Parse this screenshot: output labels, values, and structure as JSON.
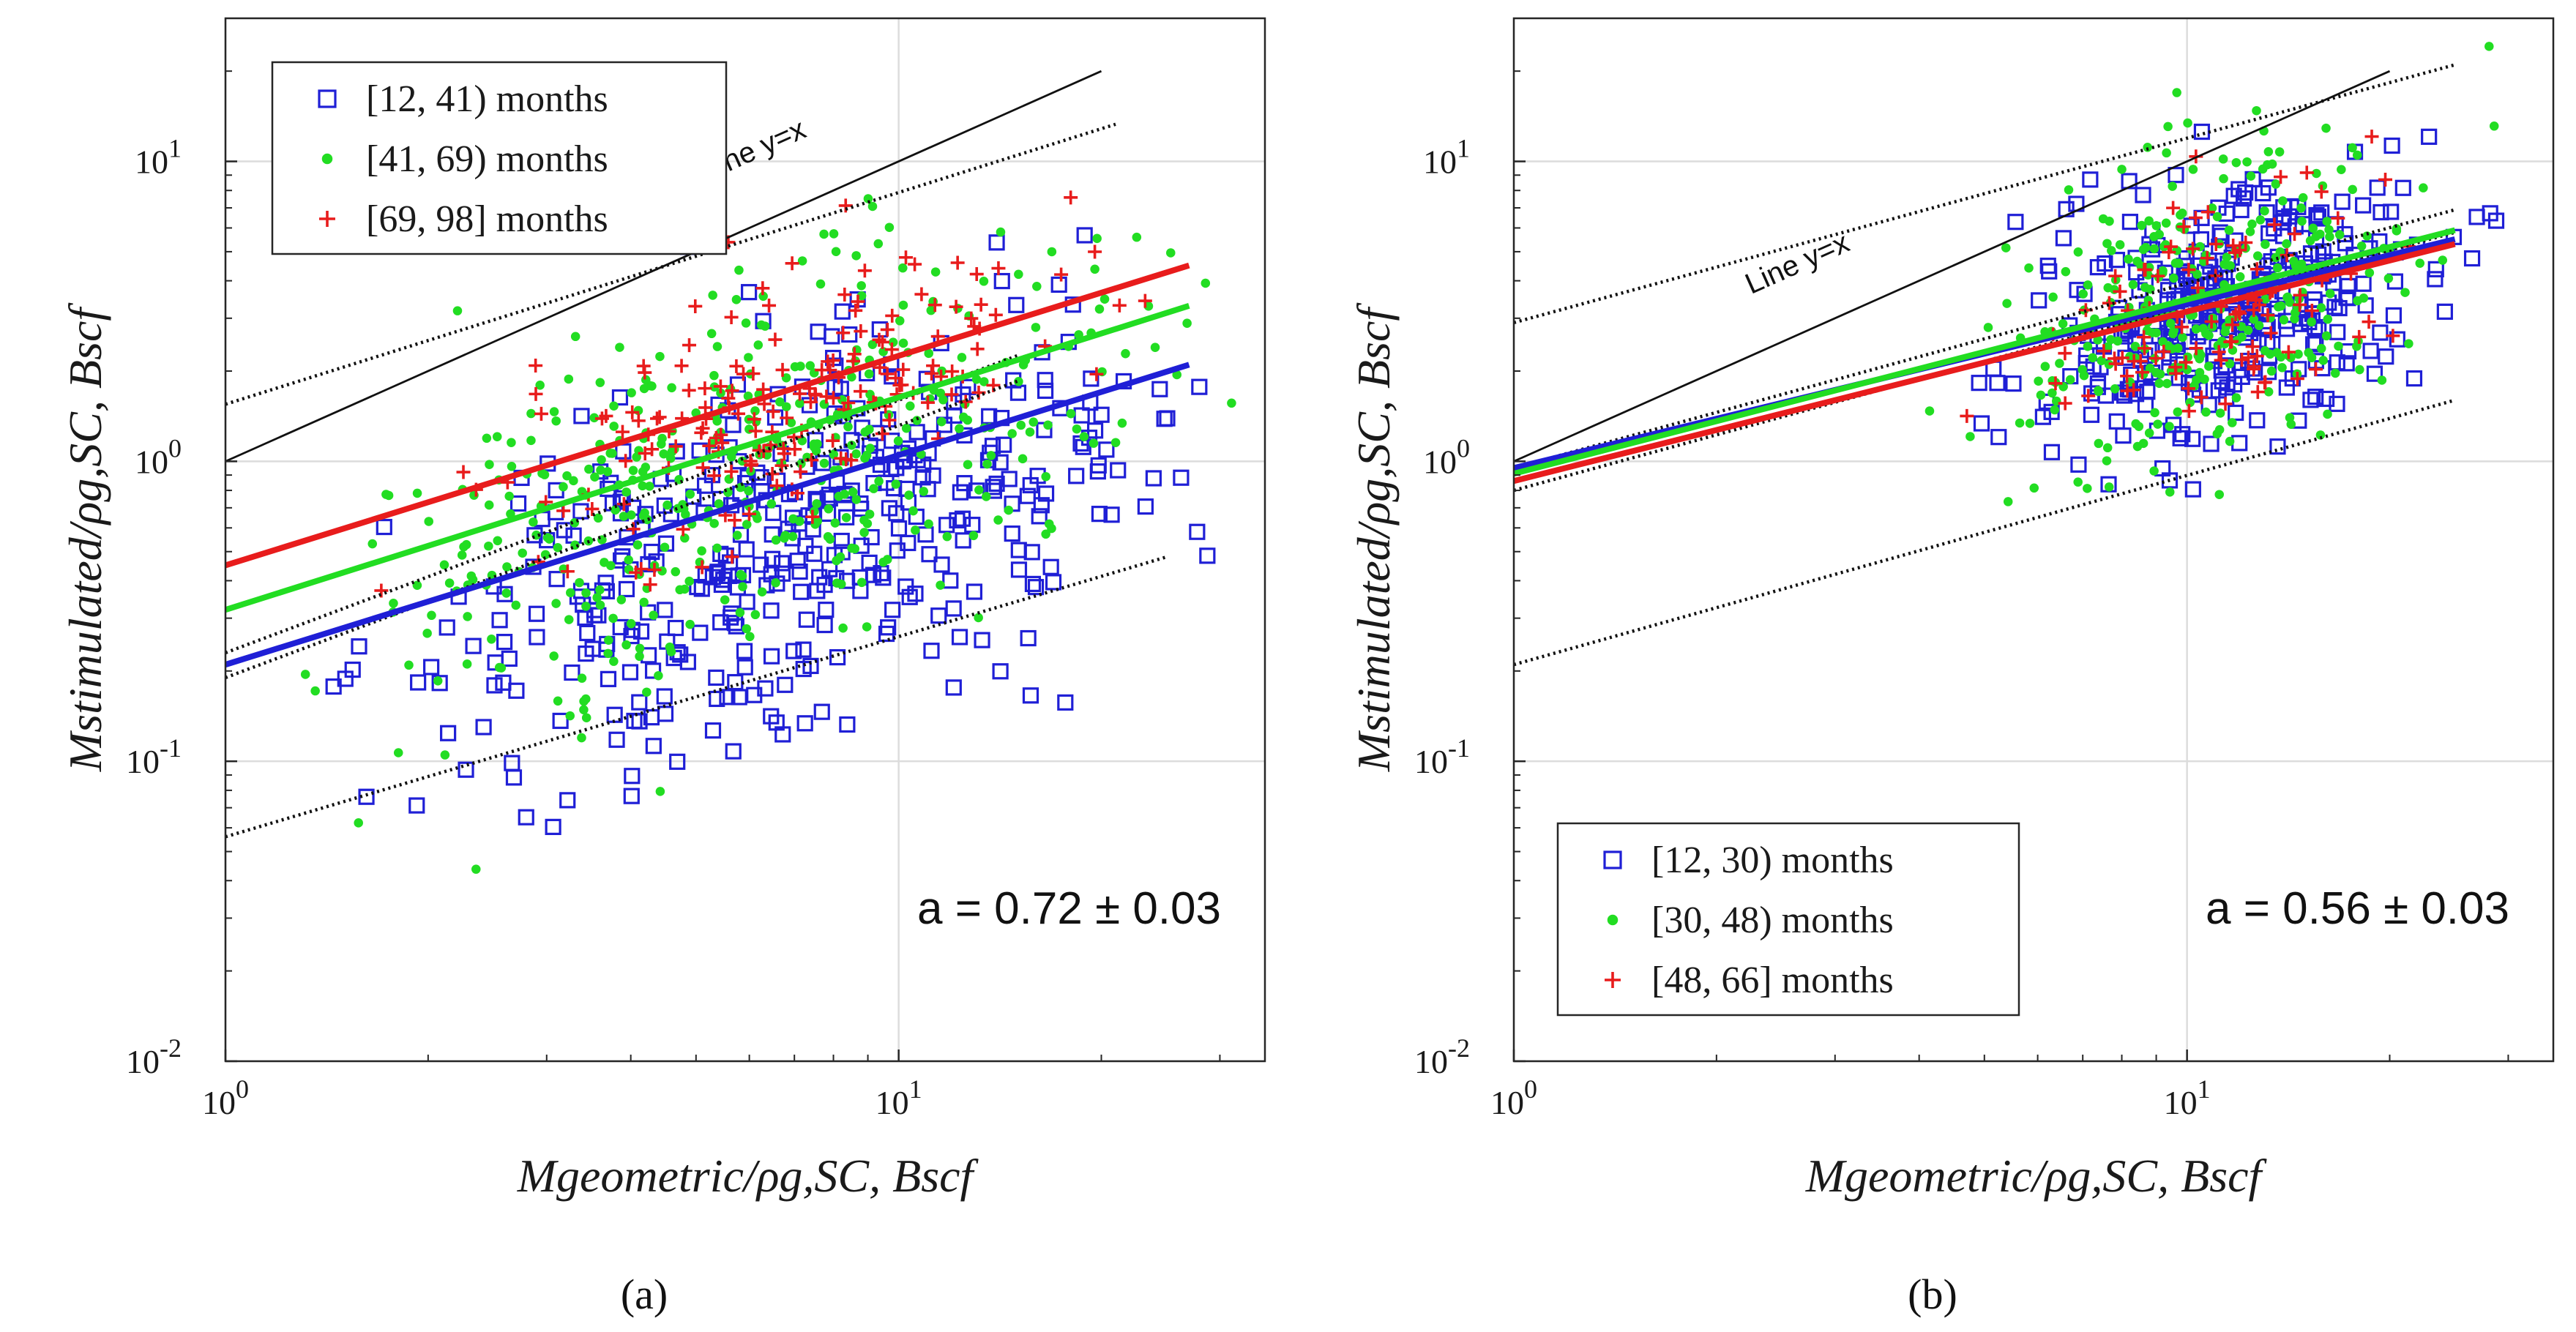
{
  "chart_data": [
    {
      "type": "scatter",
      "panel_label": "(a)",
      "xlabel": "Mgeometric/ρg,SC,  Bscf",
      "ylabel": "Mstimulated/ρg,SC,  Bscf",
      "xscale": "log",
      "yscale": "log",
      "xlim": [
        1,
        35
      ],
      "ylim": [
        0.01,
        30
      ],
      "x_ticks": [
        {
          "value": 1,
          "base": "10",
          "exp": "0"
        },
        {
          "value": 10,
          "base": "10",
          "exp": "1"
        }
      ],
      "y_ticks": [
        {
          "value": 0.01,
          "base": "10",
          "exp": "-2"
        },
        {
          "value": 0.1,
          "base": "10",
          "exp": "-1"
        },
        {
          "value": 1,
          "base": "10",
          "exp": "0"
        },
        {
          "value": 10,
          "base": "10",
          "exp": "1"
        }
      ],
      "grid": true,
      "legend_position": "top-left",
      "annotation": "a = 0.72 ± 0.03",
      "reference_line": {
        "label": "Line y=x",
        "x": [
          1,
          20
        ],
        "y": [
          1,
          20
        ]
      },
      "bounds": [
        {
          "name": "upper bound",
          "x": [
            1,
            21
          ],
          "y": [
            1.55,
            13.3
          ]
        },
        {
          "name": "lower bound",
          "x": [
            1,
            25
          ],
          "y": [
            0.056,
            0.48
          ]
        },
        {
          "name": "band 1",
          "x": [
            1,
            15
          ],
          "y": [
            0.19,
            1.85
          ]
        },
        {
          "name": "band 2",
          "x": [
            1,
            15
          ],
          "y": [
            0.23,
            2.25
          ]
        }
      ],
      "series": [
        {
          "name": "[12, 41) months",
          "marker": "square",
          "color": "#1f1fd6",
          "fit": {
            "x": [
              1,
              27
            ],
            "y": [
              0.21,
              2.1
            ]
          },
          "n_points": 420,
          "cloud": {
            "x_center": 6.5,
            "x_log_spread": 0.28,
            "y_center": 0.5,
            "y_log_spread": 0.3,
            "slope": 0.72
          }
        },
        {
          "name": "[41, 69) months",
          "marker": "dot",
          "color": "#22dd22",
          "fit": {
            "x": [
              1,
              27
            ],
            "y": [
              0.32,
              3.3
            ]
          },
          "n_points": 460,
          "cloud": {
            "x_center": 6.0,
            "x_log_spread": 0.27,
            "y_center": 0.95,
            "y_log_spread": 0.3,
            "slope": 0.72
          }
        },
        {
          "name": "[69, 98] months",
          "marker": "plus",
          "color": "#e81c1c",
          "fit": {
            "x": [
              1,
              27
            ],
            "y": [
              0.45,
              4.5
            ]
          },
          "n_points": 180,
          "cloud": {
            "x_center": 6.8,
            "x_log_spread": 0.22,
            "y_center": 1.6,
            "y_log_spread": 0.2,
            "slope": 0.72
          }
        }
      ]
    },
    {
      "type": "scatter",
      "panel_label": "(b)",
      "xlabel": "Mgeometric/ρg,SC,  Bscf",
      "ylabel": "Mstimulated/ρg,SC,  Bscf",
      "xscale": "log",
      "yscale": "log",
      "xlim": [
        1,
        35
      ],
      "ylim": [
        0.01,
        30
      ],
      "x_ticks": [
        {
          "value": 1,
          "base": "10",
          "exp": "0"
        },
        {
          "value": 10,
          "base": "10",
          "exp": "1"
        }
      ],
      "y_ticks": [
        {
          "value": 0.01,
          "base": "10",
          "exp": "-2"
        },
        {
          "value": 0.1,
          "base": "10",
          "exp": "-1"
        },
        {
          "value": 1,
          "base": "10",
          "exp": "0"
        },
        {
          "value": 10,
          "base": "10",
          "exp": "1"
        }
      ],
      "grid": true,
      "legend_position": "bottom-left",
      "annotation": "a = 0.56 ± 0.03",
      "reference_line": {
        "label": "Line y=x",
        "x": [
          1,
          20
        ],
        "y": [
          1,
          20
        ]
      },
      "bounds": [
        {
          "name": "upper bound",
          "x": [
            1,
            25
          ],
          "y": [
            2.9,
            21
          ]
        },
        {
          "name": "lower bound",
          "x": [
            1,
            25
          ],
          "y": [
            0.21,
            1.6
          ]
        },
        {
          "name": "band 1",
          "x": [
            1,
            25
          ],
          "y": [
            0.8,
            5.8
          ]
        },
        {
          "name": "band 2",
          "x": [
            1,
            25
          ],
          "y": [
            0.95,
            6.9
          ]
        }
      ],
      "series": [
        {
          "name": "[12, 30) months",
          "marker": "square",
          "color": "#1f1fd6",
          "fit": {
            "x": [
              1,
              25
            ],
            "y": [
              0.95,
              5.5
            ]
          },
          "n_points": 340,
          "cloud": {
            "x_center": 11.5,
            "x_log_spread": 0.14,
            "y_center": 3.2,
            "y_log_spread": 0.22,
            "slope": 0.56
          }
        },
        {
          "name": "[30, 48) months",
          "marker": "dot",
          "color": "#22dd22",
          "fit": {
            "x": [
              1,
              25
            ],
            "y": [
              0.91,
              5.9
            ]
          },
          "n_points": 340,
          "cloud": {
            "x_center": 11.0,
            "x_log_spread": 0.14,
            "y_center": 3.5,
            "y_log_spread": 0.24,
            "slope": 0.56
          }
        },
        {
          "name": "[48, 66] months",
          "marker": "plus",
          "color": "#e81c1c",
          "fit": {
            "x": [
              1,
              25
            ],
            "y": [
              0.86,
              5.3
            ]
          },
          "n_points": 110,
          "cloud": {
            "x_center": 11.0,
            "x_log_spread": 0.12,
            "y_center": 3.4,
            "y_log_spread": 0.2,
            "slope": 0.56
          }
        }
      ]
    }
  ]
}
